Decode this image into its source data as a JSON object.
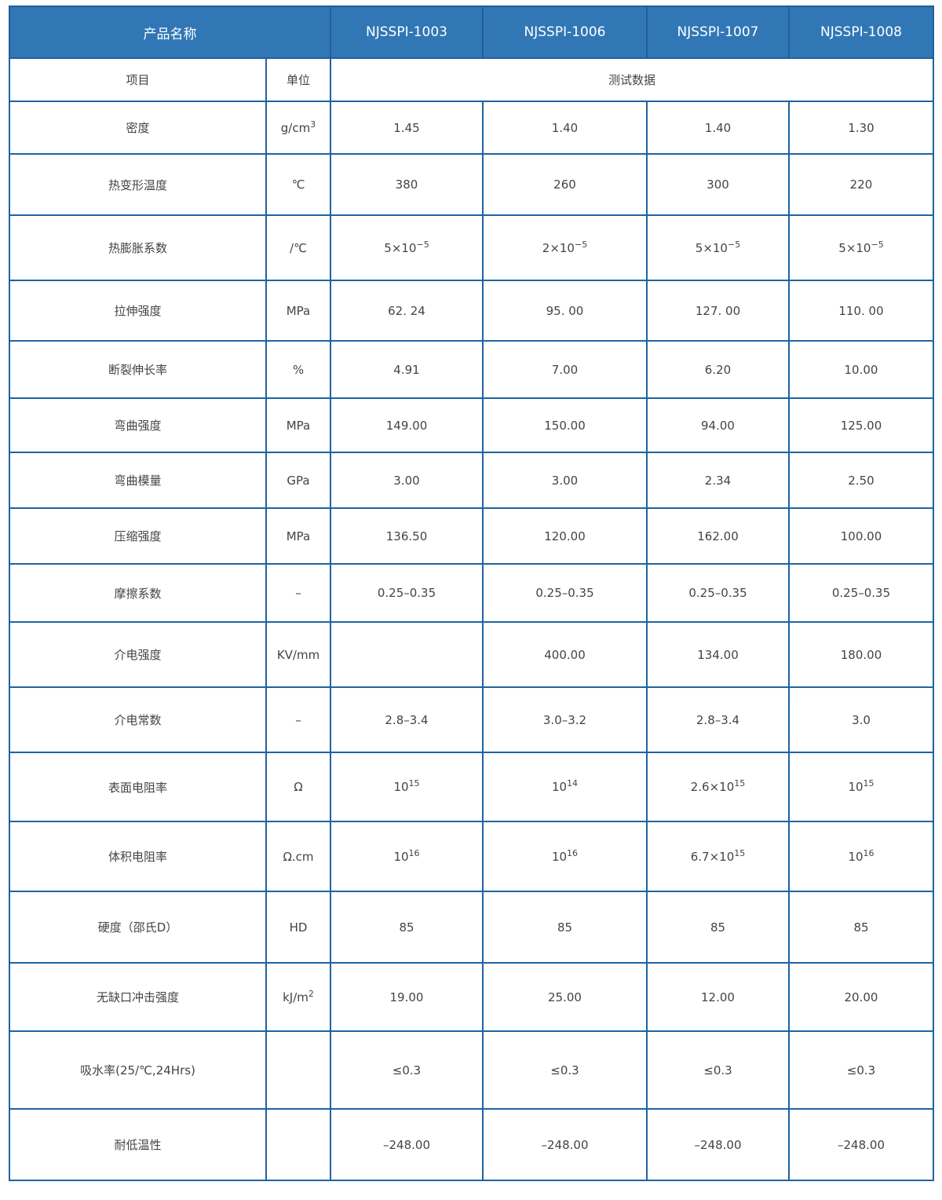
{
  "header": {
    "title": "产品名称",
    "products": [
      "NJSSPI-1003",
      "NJSSPI-1006",
      "NJSSPI-1007",
      "NJSSPI-1008"
    ]
  },
  "subheader": {
    "item": "项目",
    "unit": "单位",
    "data": "测试数据"
  },
  "colors": {
    "header_bg": "#3177b5",
    "border": "#1f63a3",
    "text": "#444444"
  },
  "rows": [
    {
      "label": "密度",
      "unit": {
        "t": "g/cm",
        "sup": "3"
      },
      "values": [
        {
          "t": "1.45"
        },
        {
          "t": "1.40"
        },
        {
          "t": "1.40"
        },
        {
          "t": "1.30"
        }
      ]
    },
    {
      "label": "热变形温度",
      "unit": {
        "t": "℃"
      },
      "values": [
        {
          "t": "380"
        },
        {
          "t": "260"
        },
        {
          "t": "300"
        },
        {
          "t": "220"
        }
      ]
    },
    {
      "label": "热膨胀系数",
      "unit": {
        "t": "/℃"
      },
      "values": [
        {
          "t": "5×10",
          "sup": "−5"
        },
        {
          "t": "2×10",
          "sup": "−5"
        },
        {
          "t": "5×10",
          "sup": "−5"
        },
        {
          "t": "5×10",
          "sup": "−5"
        }
      ]
    },
    {
      "label": "拉伸强度",
      "unit": {
        "t": "MPa"
      },
      "values": [
        {
          "t": "62. 24"
        },
        {
          "t": "95. 00"
        },
        {
          "t": "127. 00"
        },
        {
          "t": "110. 00"
        }
      ]
    },
    {
      "label": "断裂伸长率",
      "unit": {
        "t": "%"
      },
      "values": [
        {
          "t": "4.91"
        },
        {
          "t": "7.00"
        },
        {
          "t": "6.20"
        },
        {
          "t": "10.00"
        }
      ]
    },
    {
      "label": "弯曲强度",
      "unit": {
        "t": "MPa"
      },
      "values": [
        {
          "t": "149.00"
        },
        {
          "t": "150.00"
        },
        {
          "t": "94.00"
        },
        {
          "t": "125.00"
        }
      ]
    },
    {
      "label": "弯曲模量",
      "unit": {
        "t": "GPa"
      },
      "values": [
        {
          "t": "3.00"
        },
        {
          "t": "3.00"
        },
        {
          "t": "2.34"
        },
        {
          "t": "2.50"
        }
      ]
    },
    {
      "label": "压缩强度",
      "unit": {
        "t": "MPa"
      },
      "values": [
        {
          "t": "136.50"
        },
        {
          "t": "120.00"
        },
        {
          "t": "162.00"
        },
        {
          "t": "100.00"
        }
      ]
    },
    {
      "label": "摩擦系数",
      "unit": {
        "t": "–"
      },
      "values": [
        {
          "t": "0.25–0.35"
        },
        {
          "t": "0.25–0.35"
        },
        {
          "t": "0.25–0.35"
        },
        {
          "t": "0.25–0.35"
        }
      ]
    },
    {
      "label": "介电强度",
      "unit": {
        "t": "KV/mm"
      },
      "values": [
        {
          "t": ""
        },
        {
          "t": "400.00"
        },
        {
          "t": "134.00"
        },
        {
          "t": "180.00"
        }
      ]
    },
    {
      "label": "介电常数",
      "unit": {
        "t": "–"
      },
      "values": [
        {
          "t": "2.8–3.4"
        },
        {
          "t": "3.0–3.2"
        },
        {
          "t": "2.8–3.4"
        },
        {
          "t": "3.0"
        }
      ]
    },
    {
      "label": "表面电阻率",
      "unit": {
        "t": "Ω"
      },
      "values": [
        {
          "t": "10",
          "sup": "15"
        },
        {
          "t": "10",
          "sup": "14"
        },
        {
          "t": "2.6×10",
          "sup": "15"
        },
        {
          "t": "10",
          "sup": "15"
        }
      ]
    },
    {
      "label": "体积电阻率",
      "unit": {
        "t": "Ω.cm"
      },
      "values": [
        {
          "t": "10",
          "sup": "16"
        },
        {
          "t": "10",
          "sup": "16"
        },
        {
          "t": "6.7×10",
          "sup": "15"
        },
        {
          "t": "10",
          "sup": "16"
        }
      ]
    },
    {
      "label": "硬度（邵氏D）",
      "unit": {
        "t": "HD"
      },
      "values": [
        {
          "t": "85"
        },
        {
          "t": "85"
        },
        {
          "t": "85"
        },
        {
          "t": "85"
        }
      ]
    },
    {
      "label": "无缺口冲击强度",
      "unit": {
        "t": "kJ/m",
        "sup": "2"
      },
      "values": [
        {
          "t": "19.00"
        },
        {
          "t": "25.00"
        },
        {
          "t": "12.00"
        },
        {
          "t": "20.00"
        }
      ]
    },
    {
      "label": "吸水率(25/℃,24Hrs)",
      "unit": {
        "t": ""
      },
      "values": [
        {
          "t": "≤0.3"
        },
        {
          "t": "≤0.3"
        },
        {
          "t": "≤0.3"
        },
        {
          "t": "≤0.3"
        }
      ]
    },
    {
      "label": "耐低温性",
      "unit": {
        "t": ""
      },
      "values": [
        {
          "t": "–248.00"
        },
        {
          "t": "–248.00"
        },
        {
          "t": "–248.00"
        },
        {
          "t": "–248.00"
        }
      ]
    }
  ]
}
